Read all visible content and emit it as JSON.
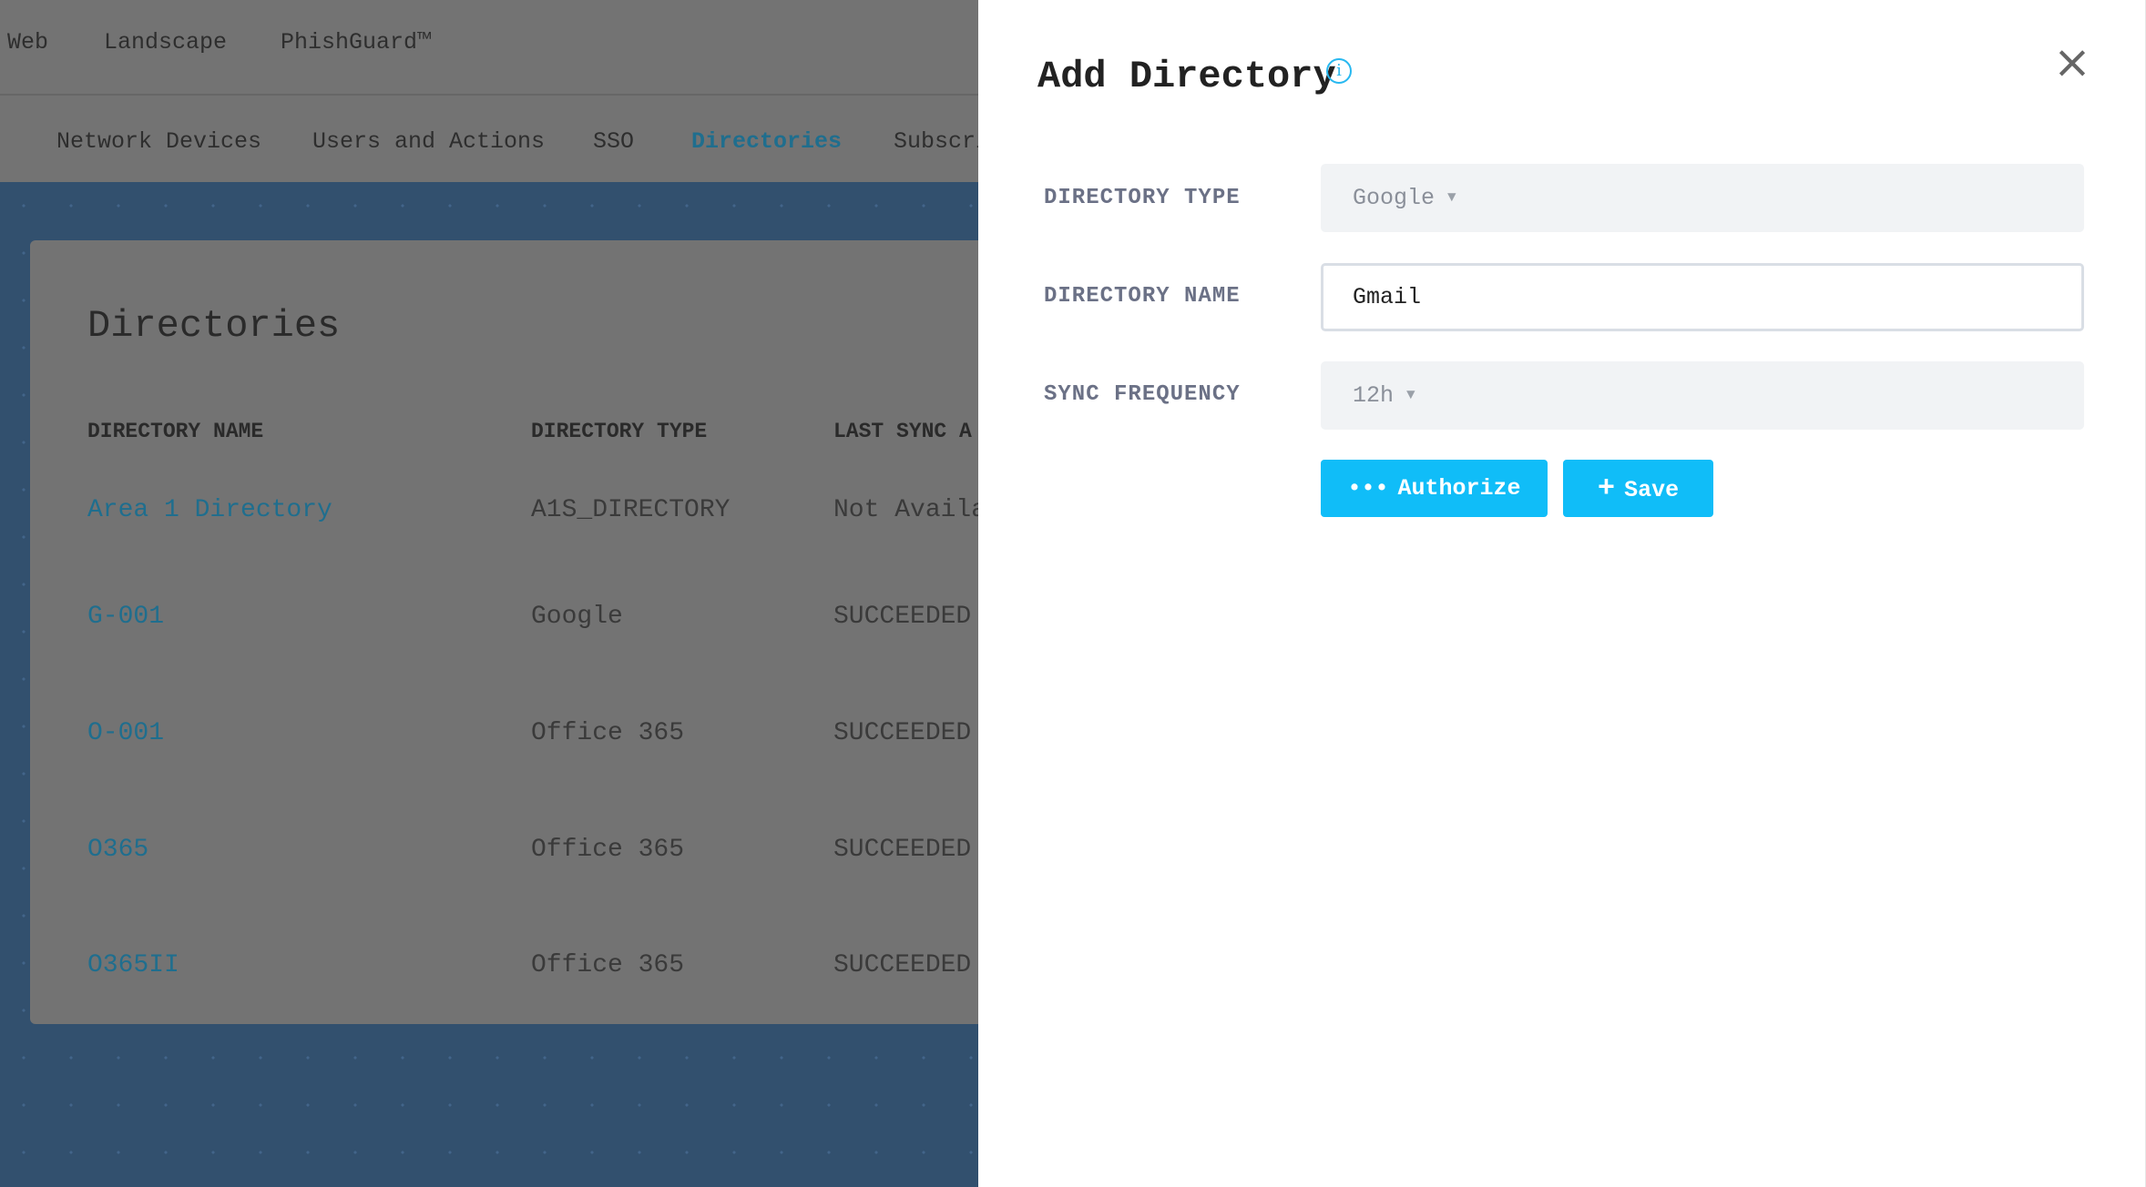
{
  "topnav": {
    "items": [
      "Web",
      "Landscape",
      "PhishGuard™"
    ]
  },
  "tabs": [
    {
      "label": "Network Devices"
    },
    {
      "label": "Users and Actions"
    },
    {
      "label": "SSO"
    },
    {
      "label": "Directories",
      "active": true
    },
    {
      "label": "Subscri"
    }
  ],
  "card": {
    "title": "Directories",
    "columns": [
      "DIRECTORY NAME",
      "DIRECTORY TYPE",
      "LAST SYNC A"
    ],
    "rows": [
      {
        "name": "Area 1 Directory",
        "type": "A1S_DIRECTORY",
        "status": "Not Availa"
      },
      {
        "name": "G-001",
        "type": "Google",
        "status": "SUCCEEDED"
      },
      {
        "name": "O-001",
        "type": "Office 365",
        "status": "SUCCEEDED"
      },
      {
        "name": "O365",
        "type": "Office 365",
        "status": "SUCCEEDED"
      },
      {
        "name": "O365II",
        "type": "Office 365",
        "status": "SUCCEEDED"
      }
    ]
  },
  "panel": {
    "title": "Add Directory",
    "info_icon": "i",
    "close_icon": "×",
    "fields": {
      "directory_type": {
        "label": "DIRECTORY TYPE",
        "value": "Google"
      },
      "directory_name": {
        "label": "DIRECTORY NAME",
        "value": "Gmail"
      },
      "sync_frequency": {
        "label": "SYNC FREQUENCY",
        "value": "12h"
      }
    },
    "authorize_label": "Authorize",
    "authorize_icon": "•••",
    "save_label": "Save",
    "save_icon": "+"
  },
  "colors": {
    "accent": "#10bdf8",
    "link": "#38a9d6"
  }
}
